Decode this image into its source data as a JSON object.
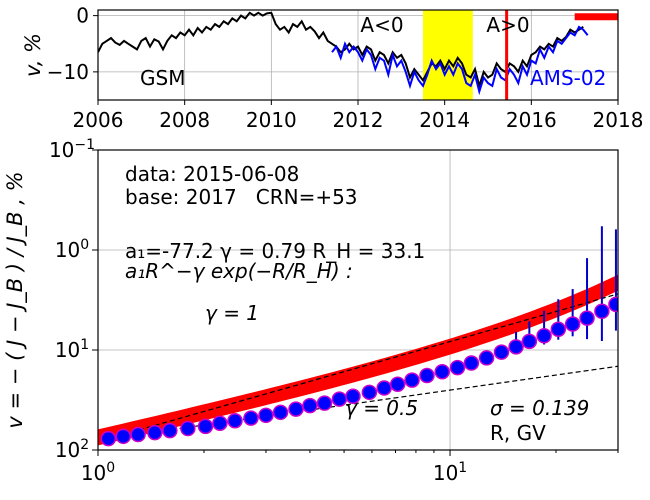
{
  "chart_data": [
    {
      "type": "line",
      "panel": "top",
      "ylabel": "v, %",
      "xlim": [
        2006,
        2018
      ],
      "ylim": [
        -15,
        1
      ],
      "x_ticks": [
        "2006",
        "2008",
        "2010",
        "2012",
        "2014",
        "2016",
        "2018"
      ],
      "y_ticks": [
        "0",
        "−10"
      ],
      "grid": true,
      "annotations": {
        "a_neg": "A<0",
        "a_pos": "A>0",
        "gsm": "GSM",
        "ams": "AMS-02"
      },
      "highlight_band": {
        "x_start": 2013.5,
        "x_end": 2014.65,
        "color": "#ffff00"
      },
      "marker_line": {
        "x": 2015.43,
        "color": "#ff0000"
      },
      "base_bar": {
        "x_start": 2017.0,
        "x_end": 2018.0,
        "y": -0.2,
        "color": "#ff0000"
      },
      "series": [
        {
          "name": "GSM",
          "color": "#000000",
          "x": [
            2006.0,
            2006.1,
            2006.2,
            2006.3,
            2006.4,
            2006.5,
            2006.6,
            2006.7,
            2006.8,
            2006.9,
            2007.0,
            2007.1,
            2007.2,
            2007.3,
            2007.4,
            2007.5,
            2007.6,
            2007.7,
            2007.8,
            2007.9,
            2008.0,
            2008.1,
            2008.2,
            2008.3,
            2008.4,
            2008.5,
            2008.6,
            2008.7,
            2008.8,
            2008.9,
            2009.0,
            2009.1,
            2009.2,
            2009.3,
            2009.4,
            2009.5,
            2009.6,
            2009.7,
            2009.8,
            2009.9,
            2010.0,
            2010.1,
            2010.2,
            2010.3,
            2010.4,
            2010.5,
            2010.6,
            2010.7,
            2010.8,
            2010.9,
            2011.0,
            2011.1,
            2011.2,
            2011.3,
            2011.4,
            2011.5,
            2011.6,
            2011.7,
            2011.8,
            2011.9,
            2012.0,
            2012.1,
            2012.2,
            2012.3,
            2012.4,
            2012.5,
            2012.6,
            2012.7,
            2012.8,
            2012.9,
            2013.0,
            2013.1,
            2013.2,
            2013.3,
            2013.4,
            2013.5,
            2013.6,
            2013.7,
            2013.8,
            2013.9,
            2014.0,
            2014.1,
            2014.2,
            2014.3,
            2014.4,
            2014.5,
            2014.6,
            2014.7,
            2014.8,
            2014.9,
            2015.0,
            2015.1,
            2015.2,
            2015.3,
            2015.4,
            2015.5,
            2015.6,
            2015.7,
            2015.8,
            2015.9,
            2016.0,
            2016.1,
            2016.2,
            2016.3,
            2016.4,
            2016.5,
            2016.6,
            2016.7,
            2016.8,
            2016.9,
            2017.0,
            2017.1,
            2017.2
          ],
          "y": [
            -6.5,
            -5.0,
            -4.5,
            -4.0,
            -4.8,
            -5.2,
            -4.5,
            -5.0,
            -5.5,
            -6.0,
            -4.5,
            -4.0,
            -5.5,
            -4.2,
            -4.6,
            -6.0,
            -4.5,
            -3.5,
            -4.0,
            -3.0,
            -3.5,
            -2.5,
            -3.5,
            -2.2,
            -3.0,
            -2.0,
            -2.5,
            -1.5,
            -2.0,
            -1.0,
            -1.5,
            -0.5,
            -1.0,
            0.0,
            -0.5,
            0.5,
            0.0,
            0.5,
            0.0,
            0.4,
            0.5,
            -1.5,
            -2.5,
            -2.0,
            -3.0,
            -1.5,
            -2.0,
            -1.0,
            -2.5,
            -2.0,
            -2.8,
            -4.0,
            -3.0,
            -4.5,
            -5.0,
            -5.5,
            -6.5,
            -6.0,
            -5.0,
            -6.0,
            -5.5,
            -7.0,
            -5.5,
            -6.0,
            -8.0,
            -6.5,
            -7.0,
            -8.5,
            -6.5,
            -7.5,
            -7.0,
            -8.5,
            -11.0,
            -9.5,
            -10.5,
            -11.5,
            -10.0,
            -8.5,
            -9.0,
            -8.0,
            -9.5,
            -8.0,
            -9.0,
            -7.5,
            -8.5,
            -10.5,
            -11.0,
            -9.5,
            -12.5,
            -10.0,
            -11.0,
            -10.5,
            -8.5,
            -9.5,
            -10.0,
            -8.5,
            -9.0,
            -10.0,
            -8.0,
            -9.0,
            -7.0,
            -6.5,
            -5.5,
            -6.0,
            -5.0,
            -5.5,
            -4.0,
            -4.5,
            -3.8,
            -2.5,
            -3.0,
            -2.5,
            -2.0
          ]
        },
        {
          "name": "AMS-02",
          "color": "#0000ff",
          "x": [
            2011.4,
            2011.5,
            2011.6,
            2011.7,
            2011.8,
            2011.9,
            2012.0,
            2012.1,
            2012.2,
            2012.3,
            2012.4,
            2012.5,
            2012.6,
            2012.7,
            2012.8,
            2012.9,
            2013.0,
            2013.1,
            2013.2,
            2013.3,
            2013.4,
            2013.5,
            2013.6,
            2013.7,
            2013.8,
            2013.9,
            2014.0,
            2014.1,
            2014.2,
            2014.3,
            2014.4,
            2014.5,
            2014.6,
            2014.7,
            2014.8,
            2014.9,
            2015.0,
            2015.1,
            2015.2,
            2015.3,
            2015.4,
            2015.5,
            2015.6,
            2015.7,
            2015.8,
            2015.9,
            2016.0,
            2016.1,
            2016.2,
            2016.3,
            2016.4,
            2016.5,
            2016.6,
            2016.7,
            2016.8,
            2016.9,
            2017.0,
            2017.1,
            2017.2,
            2017.3
          ],
          "y": [
            -6.5,
            -5.5,
            -7.5,
            -5.0,
            -6.5,
            -5.5,
            -6.5,
            -8.0,
            -6.0,
            -7.0,
            -9.5,
            -7.5,
            -8.0,
            -10.5,
            -7.0,
            -9.0,
            -8.0,
            -10.0,
            -12.5,
            -10.0,
            -11.5,
            -12.5,
            -10.5,
            -8.0,
            -9.5,
            -8.5,
            -10.5,
            -9.0,
            -10.5,
            -8.5,
            -9.5,
            -12.0,
            -12.5,
            -10.5,
            -13.5,
            -11.0,
            -12.0,
            -12.5,
            -9.5,
            -11.0,
            -11.5,
            -9.5,
            -10.5,
            -12.0,
            -9.0,
            -10.5,
            -8.0,
            -8.5,
            -6.0,
            -7.5,
            -5.5,
            -6.5,
            -4.5,
            -5.0,
            -4.0,
            -3.0,
            -3.5,
            -2.0,
            -2.5,
            -3.5
          ]
        }
      ]
    },
    {
      "type": "scatter",
      "panel": "bottom",
      "xlabel": "R, GV",
      "ylabel": "v = − ( J − J_B ) / J_B , %",
      "x_scale": "log",
      "y_scale": "log",
      "xlim": [
        1,
        30
      ],
      "ylim": [
        100,
        0.1
      ],
      "y_inverted": true,
      "x_tick_labels": [
        {
          "base": "10",
          "exp": "0"
        },
        {
          "base": "10",
          "exp": "1"
        }
      ],
      "y_tick_labels": [
        {
          "base": "10",
          "exp": "−1"
        },
        {
          "base": "10",
          "exp": "0"
        },
        {
          "base": "10",
          "exp": "1"
        },
        {
          "base": "10",
          "exp": "2"
        }
      ],
      "grid": true,
      "annotations": {
        "data_line": "data: 2015-06-08",
        "base_line": "base: 2017   CRN=+53",
        "fit_params": "a₁=-77.2  γ = 0.79  R_H = 33.1",
        "fit_formula": "a₁R^−γ exp(−R/R_H) :",
        "gamma1": "γ = 1",
        "gamma05": "γ = 0.5",
        "sigma": "σ = 0.139"
      },
      "points": {
        "color": "#0000ff",
        "edge_color": "#cc00cc",
        "x": [
          1.07,
          1.18,
          1.3,
          1.45,
          1.6,
          1.8,
          2.02,
          2.22,
          2.45,
          2.72,
          3.0,
          3.3,
          3.65,
          4.0,
          4.4,
          4.85,
          5.3,
          5.9,
          6.5,
          7.1,
          7.8,
          8.6,
          9.5,
          10.5,
          11.5,
          12.7,
          14.0,
          15.4,
          16.8,
          18.5,
          20.3,
          22.3,
          24.5,
          27.0,
          29.6
        ],
        "y": [
          77,
          73,
          70,
          67,
          64,
          61,
          58,
          54,
          51,
          48,
          45,
          42,
          39,
          36,
          34,
          31,
          29,
          26.5,
          24,
          22,
          20,
          18,
          16.5,
          15,
          13.5,
          12,
          10.5,
          9.3,
          8.2,
          7.2,
          6.2,
          5.5,
          4.8,
          4.1,
          3.5
        ],
        "err": [
          0,
          0,
          0,
          0,
          0,
          0,
          0,
          0,
          0,
          0,
          0,
          0,
          0,
          0,
          0,
          0,
          0,
          0,
          0,
          0,
          0,
          0,
          0,
          0,
          0,
          0,
          0,
          0.15,
          0.2,
          0.25,
          0.3,
          0.35,
          0.6,
          0.85,
          0.75
        ]
      },
      "fit_band": {
        "color": "#ff0000",
        "a1": -77.2,
        "gamma": 0.79,
        "R_H": 33.1
      },
      "reference_lines": [
        {
          "label": "γ = 1",
          "gamma": 1.0,
          "style": "dashed"
        },
        {
          "label": "γ = 0.5",
          "gamma": 0.5,
          "style": "dashed"
        }
      ]
    }
  ]
}
